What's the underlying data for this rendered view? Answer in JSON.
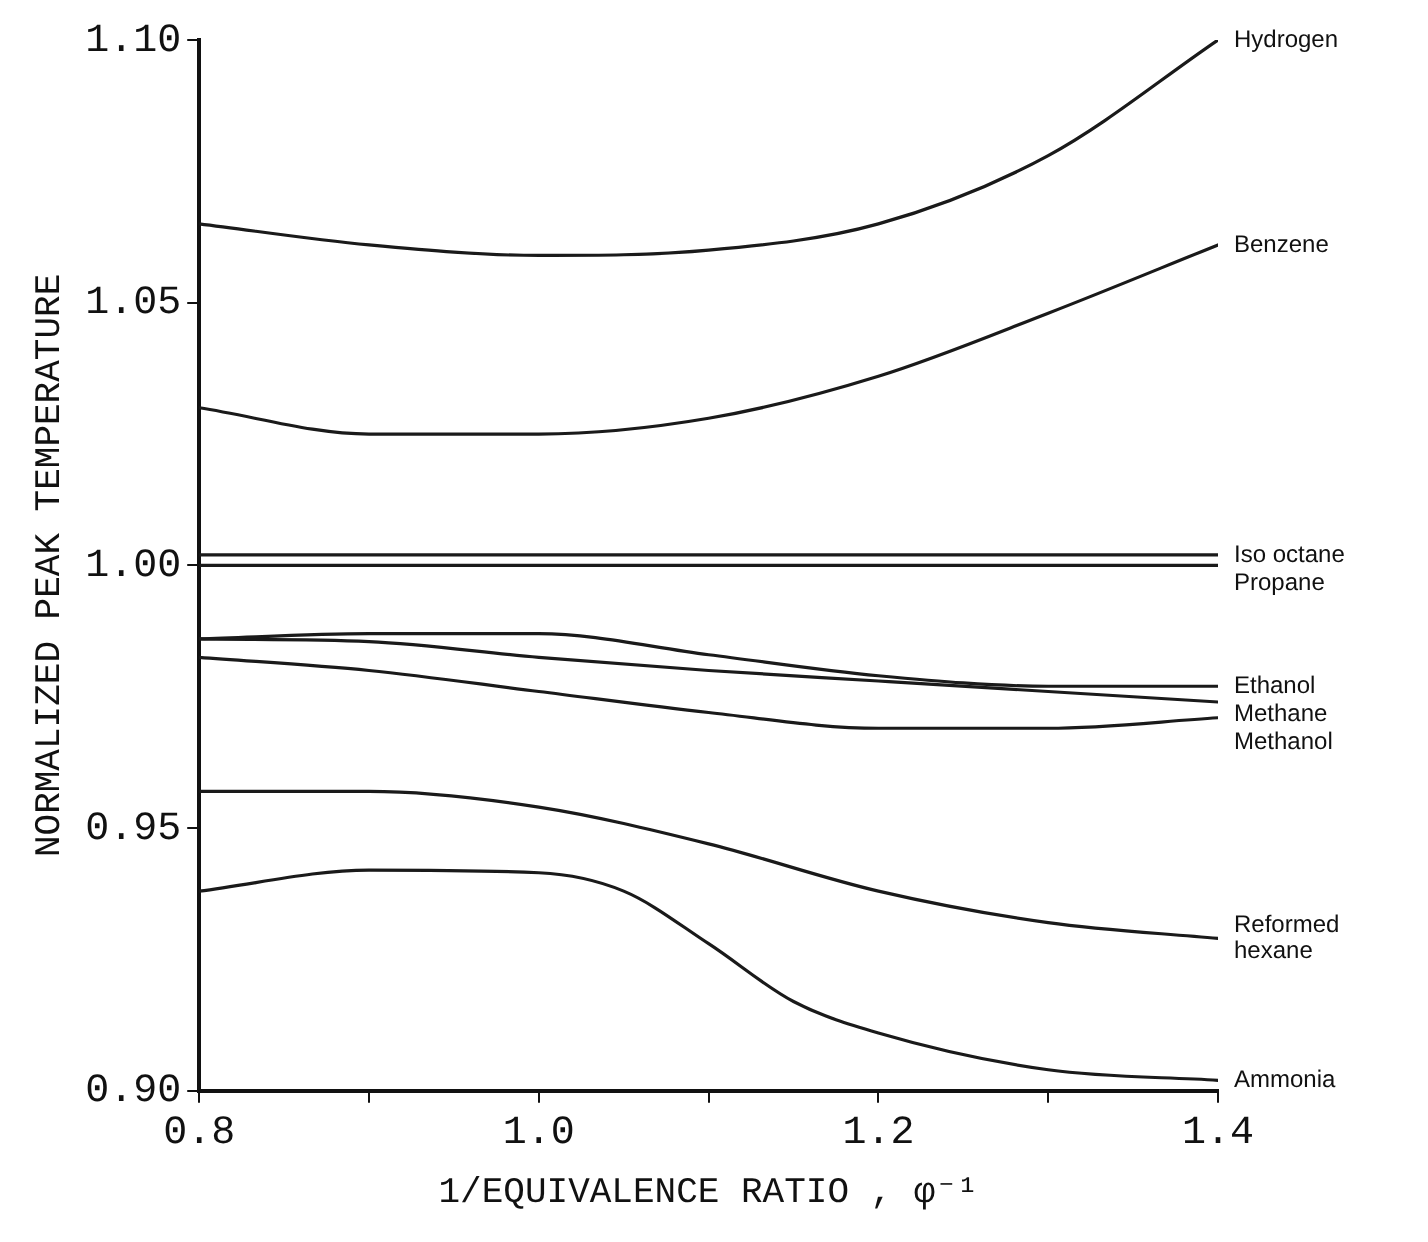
{
  "chart_data": {
    "type": "line",
    "xlabel": "1/EQUIVALENCE RATIO , φ⁻¹",
    "ylabel": "NORMALIZED PEAK TEMPERATURE",
    "x": [
      0.8,
      0.9,
      1.0,
      1.1,
      1.2,
      1.3,
      1.4
    ],
    "series": [
      {
        "name": "Hydrogen",
        "color": "#1a1a1a",
        "values": [
          1.065,
          1.061,
          1.059,
          1.06,
          1.065,
          1.078,
          1.1
        ]
      },
      {
        "name": "Benzene",
        "color": "#1a1a1a",
        "values": [
          1.03,
          1.025,
          1.025,
          1.028,
          1.036,
          1.048,
          1.061
        ]
      },
      {
        "name": "Iso octane",
        "color": "#1a1a1a",
        "values": [
          1.002,
          1.002,
          1.002,
          1.002,
          1.002,
          1.002,
          1.002
        ]
      },
      {
        "name": "Propane",
        "color": "#1a1a1a",
        "values": [
          1.0,
          1.0,
          1.0,
          1.0,
          1.0,
          1.0,
          1.0
        ]
      },
      {
        "name": "Ethanol",
        "color": "#1a1a1a",
        "values": [
          0.986,
          0.987,
          0.987,
          0.983,
          0.979,
          0.977,
          0.977
        ]
      },
      {
        "name": "Methane",
        "color": "#1a1a1a",
        "values": [
          0.986,
          0.9855,
          0.9825,
          0.98,
          0.978,
          0.976,
          0.974
        ]
      },
      {
        "name": "Methanol",
        "color": "#1a1a1a",
        "values": [
          0.9825,
          0.98,
          0.976,
          0.972,
          0.969,
          0.969,
          0.971
        ]
      },
      {
        "name": "Reformed hexane",
        "color": "#1a1a1a",
        "values": [
          0.957,
          0.957,
          0.954,
          0.947,
          0.938,
          0.932,
          0.929
        ]
      },
      {
        "name": "Ammonia",
        "color": "#1a1a1a",
        "x": [
          0.8,
          0.9,
          1.0,
          1.05,
          1.1,
          1.15,
          1.2,
          1.3,
          1.4
        ],
        "values": [
          0.938,
          0.942,
          0.9415,
          0.938,
          0.928,
          0.917,
          0.911,
          0.904,
          0.902
        ]
      }
    ],
    "xlim": [
      0.8,
      1.4
    ],
    "ylim": [
      0.9,
      1.1
    ],
    "xticks": [
      {
        "value": 0.8,
        "label": "0.8"
      },
      {
        "value": 0.9,
        "label": null
      },
      {
        "value": 1.0,
        "label": "1.0"
      },
      {
        "value": 1.1,
        "label": null
      },
      {
        "value": 1.2,
        "label": "1.2"
      },
      {
        "value": 1.3,
        "label": null
      },
      {
        "value": 1.4,
        "label": "1.4"
      }
    ],
    "yticks": [
      {
        "value": 0.9,
        "label": "0.90"
      },
      {
        "value": 0.95,
        "label": "0.95"
      },
      {
        "value": 1.0,
        "label": "1.00"
      },
      {
        "value": 1.05,
        "label": "1.05"
      },
      {
        "value": 1.1,
        "label": "1.10"
      }
    ],
    "grid": false,
    "legend": false,
    "marker": "none",
    "line_style": "solid"
  }
}
